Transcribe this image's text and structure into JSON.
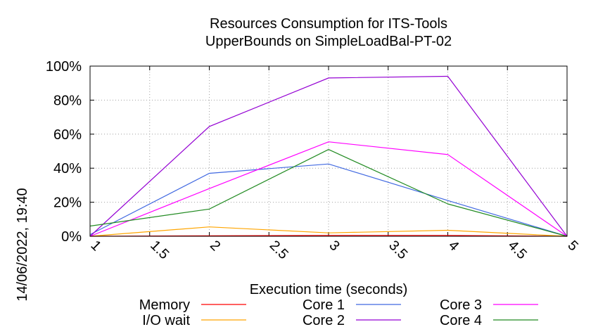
{
  "chart_data": {
    "type": "line",
    "title": [
      "Resources Consumption for ITS-Tools",
      "UpperBounds on SimpleLoadBal-PT-02"
    ],
    "xlabel": "Execution time (seconds)",
    "ylabel": "",
    "side_label": "14/06/2022, 19:40",
    "xlim": [
      1,
      5
    ],
    "ylim": [
      0,
      100
    ],
    "x_ticks": [
      "1",
      "1.5",
      "2",
      "2.5",
      "3",
      "3.5",
      "4",
      "4.5",
      "5"
    ],
    "y_ticks": [
      "0%",
      "20%",
      "40%",
      "60%",
      "80%",
      "100%"
    ],
    "grid": true,
    "legend_position": "bottom",
    "x": [
      1,
      2,
      3,
      4,
      5
    ],
    "series": [
      {
        "name": "Memory",
        "color": "#ff0000",
        "values": [
          0,
          0.3,
          0.5,
          0.5,
          0
        ]
      },
      {
        "name": "I/O wait",
        "color": "#ffa500",
        "values": [
          0,
          5.5,
          2,
          3.5,
          0
        ]
      },
      {
        "name": "Core 1",
        "color": "#4169e1",
        "values": [
          1,
          37,
          42.5,
          21,
          0
        ]
      },
      {
        "name": "Core 2",
        "color": "#9400d3",
        "values": [
          0,
          64.5,
          93,
          94,
          0
        ]
      },
      {
        "name": "Core 3",
        "color": "#ff00ff",
        "values": [
          0,
          28,
          55.5,
          48,
          0
        ]
      },
      {
        "name": "Core 4",
        "color": "#228b22",
        "values": [
          6,
          16,
          51,
          19,
          0
        ]
      }
    ]
  }
}
